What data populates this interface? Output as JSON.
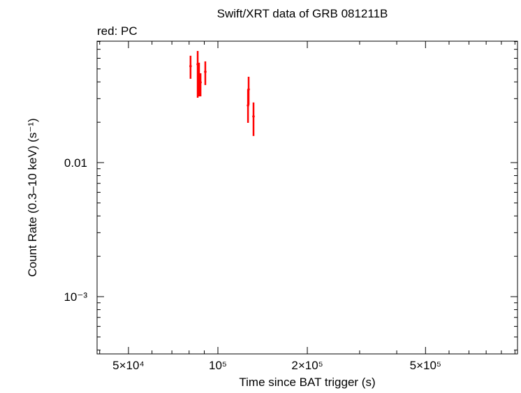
{
  "chart_data": {
    "type": "scatter",
    "title": "Swift/XRT data of GRB 081211B",
    "subtitle": "red: PC",
    "x_label": "Time since BAT trigger (s)",
    "y_label": "Count Rate (0.3–10 keV) (s⁻¹)",
    "log_x": true,
    "log_y": true,
    "xlim": [
      39200,
      1020000
    ],
    "ylim": [
      0.000374,
      0.0805
    ],
    "xticks": [
      {
        "value": 50000,
        "label": "5×10⁴"
      },
      {
        "value": 100000,
        "label": "10⁵"
      },
      {
        "value": 200000,
        "label": "2×10⁵"
      },
      {
        "value": 500000,
        "label": "5×10⁵"
      }
    ],
    "xminorticks": [
      40000,
      60000,
      70000,
      80000,
      90000,
      300000,
      400000,
      600000,
      700000,
      800000,
      900000,
      1000000
    ],
    "yticks": [
      {
        "value": 0.001,
        "label": "10⁻³"
      },
      0.01
    ],
    "yminorticks": [
      0.0004,
      0.0005,
      0.0006,
      0.0007,
      0.0008,
      0.0009,
      0.002,
      0.003,
      0.004,
      0.005,
      0.006,
      0.007,
      0.008,
      0.009,
      0.02,
      0.03,
      0.04,
      0.05,
      0.06,
      0.07,
      0.08
    ],
    "series": [
      {
        "name": "PC",
        "color": "#ff0000",
        "x": [
          80900,
          85500,
          86400,
          87400,
          90700,
          126300,
          126900,
          131800
        ],
        "values": [
          0.0524,
          0.0542,
          0.0437,
          0.0397,
          0.0476,
          0.0267,
          0.0352,
          0.0221
        ],
        "error_low": [
          0.0422,
          0.0305,
          0.0312,
          0.0312,
          0.0379,
          0.0198,
          0.027,
          0.0158
        ],
        "error_high": [
          0.0627,
          0.0681,
          0.0556,
          0.0464,
          0.0569,
          0.0352,
          0.0437,
          0.0281
        ]
      }
    ]
  }
}
